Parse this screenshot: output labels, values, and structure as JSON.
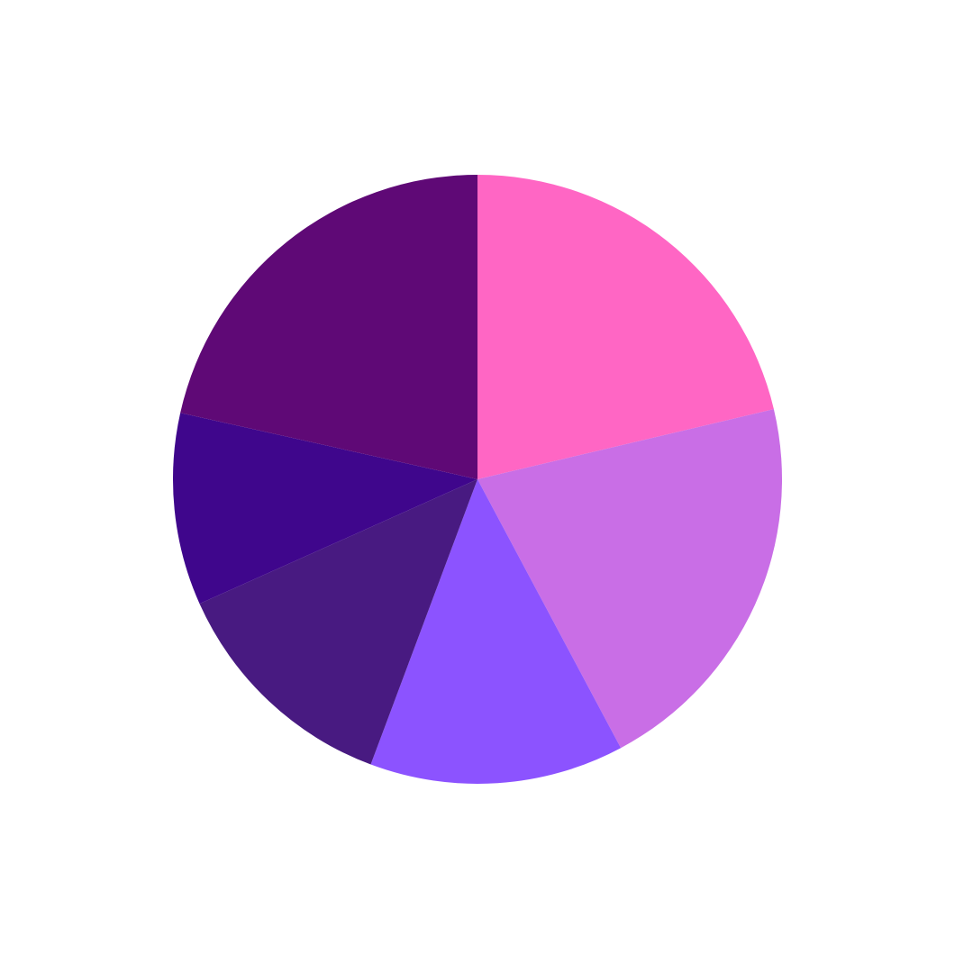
{
  "chart_data": {
    "type": "pie",
    "slices": [
      {
        "value": 21.3,
        "color": "#FF66C4"
      },
      {
        "value": 20.9,
        "color": "#C96EE6"
      },
      {
        "value": 13.5,
        "color": "#8C53FF"
      },
      {
        "value": 12.6,
        "color": "#481A81"
      },
      {
        "value": 10.2,
        "color": "#3F068C"
      },
      {
        "value": 21.5,
        "color": "#5F0976"
      }
    ],
    "start_angle": "top",
    "direction": "clockwise",
    "legend": "none"
  }
}
